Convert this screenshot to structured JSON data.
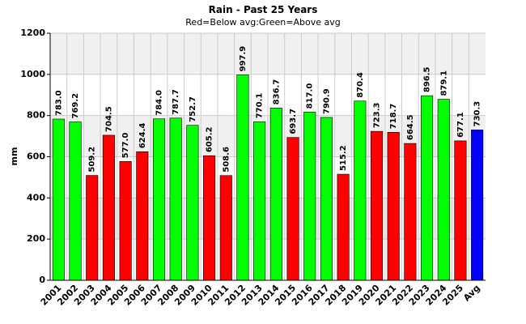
{
  "chart_data": {
    "type": "bar",
    "title": "Rain - Past 25 Years",
    "subtitle": "Red=Below avg:Green=Above avg",
    "xlabel": "",
    "ylabel": "mm",
    "ylim": [
      0,
      1200
    ],
    "yticks": [
      0,
      200,
      400,
      600,
      800,
      1000,
      1200
    ],
    "grid": true,
    "legend": "none",
    "categories": [
      "2001",
      "2002",
      "2003",
      "2004",
      "2005",
      "2006",
      "2007",
      "2008",
      "2009",
      "2010",
      "2011",
      "2012",
      "2013",
      "2014",
      "2015",
      "2016",
      "2017",
      "2018",
      "2019",
      "2020",
      "2021",
      "2022",
      "2023",
      "2024",
      "2025",
      "Avg"
    ],
    "values": [
      783.0,
      769.2,
      509.2,
      704.5,
      577.0,
      624.4,
      784.0,
      787.7,
      752.7,
      605.2,
      508.6,
      997.9,
      770.1,
      836.7,
      693.7,
      817.0,
      790.9,
      515.2,
      870.4,
      723.3,
      718.7,
      664.5,
      896.5,
      879.1,
      677.1,
      730.3
    ],
    "value_labels": [
      "783.0",
      "769.2",
      "509.2",
      "704.5",
      "577.0",
      "624.4",
      "784.0",
      "787.7",
      "752.7",
      "605.2",
      "508.6",
      "997.9",
      "770.1",
      "836.7",
      "693.7",
      "817.0",
      "790.9",
      "515.2",
      "870.4",
      "723.3",
      "718.7",
      "664.5",
      "896.5",
      "879.1",
      "677.1",
      "730.3"
    ],
    "colors": {
      "above": "#00ff00",
      "below": "#ff0000",
      "average": "#0000ff",
      "band_light": "#f0f0f0",
      "band_white": "#ffffff",
      "grid": "#cccccc",
      "axis": "#000000"
    }
  }
}
